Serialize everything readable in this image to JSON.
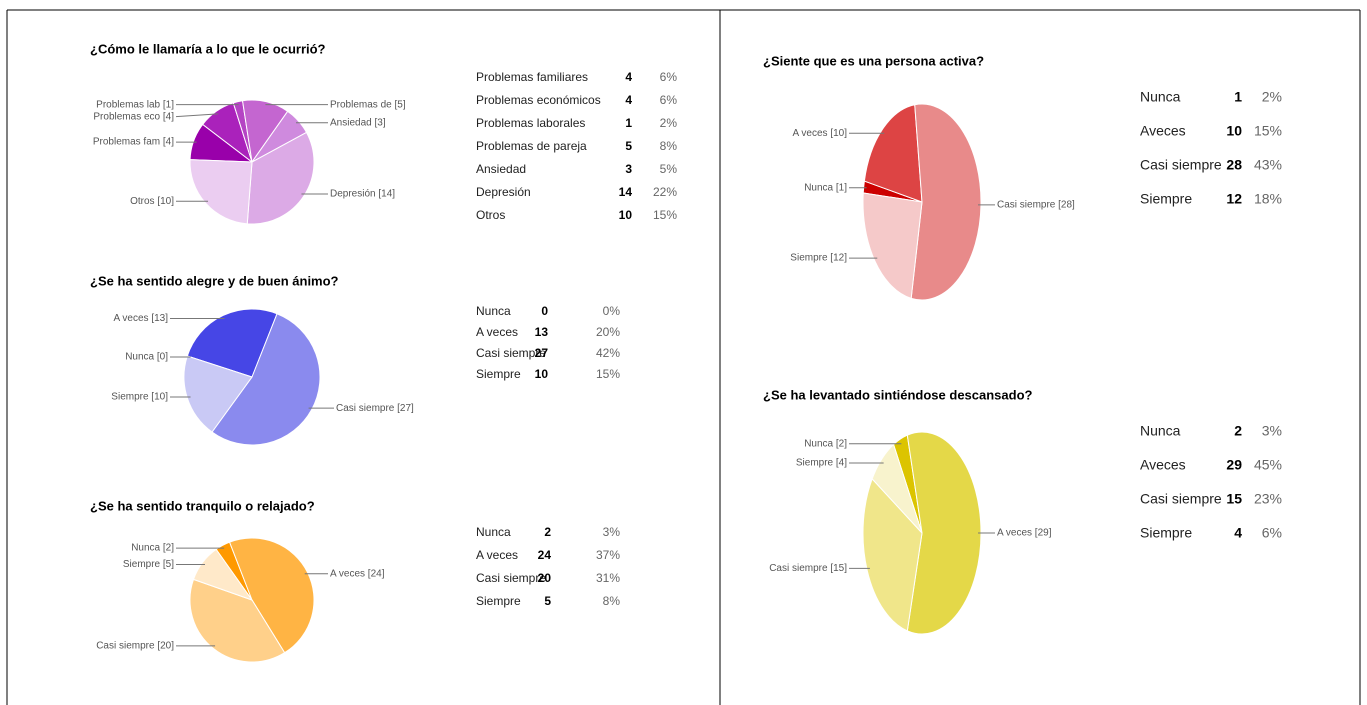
{
  "chart_data": [
    {
      "type": "pie",
      "title": "¿Cómo le llamaría a lo que le ocurrió?",
      "categories": [
        "Problemas familiares",
        "Problemas económicos",
        "Problemas laborales",
        "Problemas de pareja",
        "Ansiedad",
        "Depresión",
        "Otros"
      ],
      "values": [
        4,
        4,
        1,
        5,
        3,
        14,
        10
      ],
      "percent_labels": [
        "6%",
        "6%",
        "2%",
        "8%",
        "5%",
        "22%",
        "15%"
      ],
      "slice_labels": [
        "Problemas fam [4]",
        "Problemas eco [4]",
        "Problemas lab [1]",
        "Problemas de  [5]",
        "Ansiedad [3]",
        "Depresión [14]",
        "Otros [10]"
      ],
      "colors": [
        "#9900aa",
        "#aa22bb",
        "#b544c4",
        "#c466d0",
        "#cf8ade",
        "#dcaae6",
        "#ebcdf1"
      ]
    },
    {
      "type": "pie",
      "title": "¿Se ha sentido alegre y de buen ánimo?",
      "categories": [
        "Nunca",
        "A veces",
        "Casi siempre",
        "Siempre"
      ],
      "values": [
        0,
        13,
        27,
        10
      ],
      "percent_labels": [
        "0%",
        "20%",
        "42%",
        "15%"
      ],
      "slice_labels": [
        "Nunca [0]",
        "A veces [13]",
        "Casi siempre [27]",
        "Siempre [10]"
      ],
      "colors": [
        "#2222aa",
        "#4646e6",
        "#8a8aee",
        "#c9c9f5"
      ]
    },
    {
      "type": "pie",
      "title": "¿Se ha sentido tranquilo o relajado?",
      "categories": [
        "Nunca",
        "A veces",
        "Casi siempre",
        "Siempre"
      ],
      "values": [
        2,
        24,
        20,
        5
      ],
      "percent_labels": [
        "3%",
        "37%",
        "31%",
        "8%"
      ],
      "slice_labels": [
        "Nunca [2]",
        "A veces [24]",
        "Casi siempre [20]",
        "Siempre [5]"
      ],
      "colors": [
        "#ff9900",
        "#ffb444",
        "#ffd08a",
        "#ffe9c9"
      ]
    },
    {
      "type": "pie",
      "title": "¿Siente que es una persona activa?",
      "categories": [
        "Nunca",
        "Aveces",
        "Casi siempre",
        "Siempre"
      ],
      "values": [
        1,
        10,
        28,
        12
      ],
      "percent_labels": [
        "2%",
        "15%",
        "43%",
        "18%"
      ],
      "slice_labels": [
        "Nunca [1]",
        "A veces [10]",
        "Casi siempre [28]",
        "Siempre [12]"
      ],
      "colors": [
        "#cc0000",
        "#dd4444",
        "#e88a8a",
        "#f5c9c9"
      ]
    },
    {
      "type": "pie",
      "title": "¿Se ha levantado sintiéndose descansado?",
      "categories": [
        "Nunca",
        "Aveces",
        "Casi siempre",
        "Siempre"
      ],
      "values": [
        2,
        29,
        15,
        4
      ],
      "percent_labels": [
        "3%",
        "45%",
        "23%",
        "6%"
      ],
      "slice_labels": [
        "Nunca [2]",
        "A veces [29]",
        "Casi siempre [15]",
        "Siempre [4]"
      ],
      "colors": [
        "#dcc400",
        "#e4d848",
        "#f0e68a",
        "#f8f3cd"
      ]
    }
  ]
}
